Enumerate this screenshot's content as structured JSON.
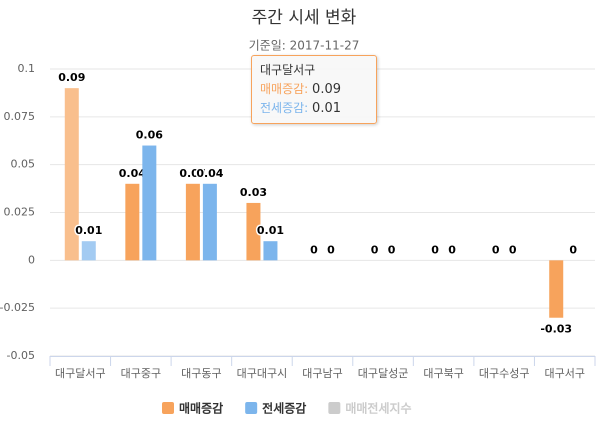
{
  "chart_data": {
    "type": "bar",
    "title": "주간 시세 변화",
    "subtitle": "기준일: 2017-11-27",
    "categories": [
      "대구달서구",
      "대구중구",
      "대구동구",
      "대구대구시",
      "대구남구",
      "대구달성군",
      "대구북구",
      "대구수성구",
      "대구서구"
    ],
    "series": [
      {
        "name": "매매증감",
        "color": "#f7a35c",
        "values": [
          0.09,
          0.04,
          0.04,
          0.03,
          0,
          0,
          0,
          0,
          -0.03
        ]
      },
      {
        "name": "전세증감",
        "color": "#7cb5ec",
        "values": [
          0.01,
          0.06,
          0.04,
          0.01,
          0,
          0,
          0,
          0,
          0
        ]
      },
      {
        "name": "매매전세지수",
        "color": "#cccccc",
        "hidden": true
      }
    ],
    "ylim": [
      -0.05,
      0.1
    ],
    "yticks": [
      0.1,
      0.075,
      0.05,
      0.025,
      0,
      -0.025,
      -0.05
    ],
    "grid": true
  }
}
